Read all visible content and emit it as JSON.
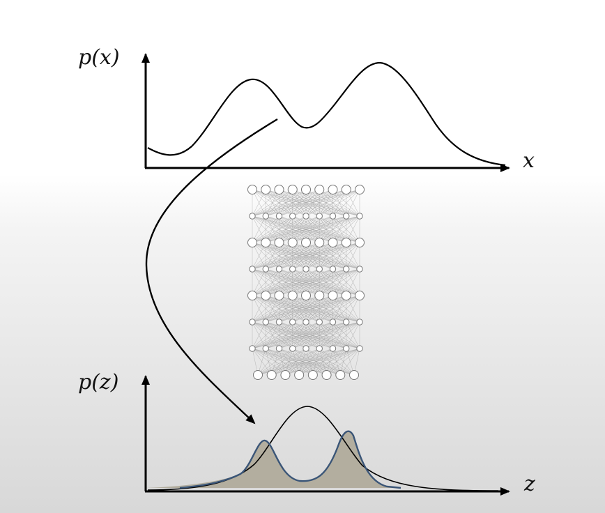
{
  "labels": {
    "px": "p(x)",
    "x": "x",
    "pz": "p(z)",
    "z": "z"
  },
  "network": {
    "layers": [
      9,
      9,
      9,
      9,
      9,
      9,
      9,
      8
    ]
  },
  "colors": {
    "axis": "#000000",
    "curve": "#000000",
    "blue_curve": "#3a5577",
    "fill": "#b3ae9f",
    "network_line": "#9a9a9a",
    "node_fill": "#ffffff",
    "node_stroke": "#777777"
  }
}
